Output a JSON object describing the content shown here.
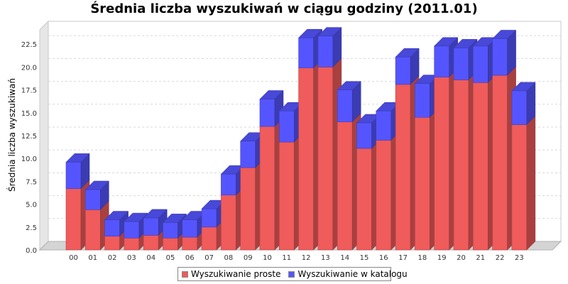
{
  "chart_data": {
    "type": "bar",
    "stacked": true,
    "three_d": true,
    "title": "Średnia liczba wyszukiwań w ciągu godziny (2011.01)",
    "ylabel": "Średnia liczba wyszukiwań",
    "xlabel": "",
    "ylim": [
      0,
      25
    ],
    "yticks": [
      "0.0",
      "2.5",
      "5.0",
      "7.5",
      "10.0",
      "12.5",
      "15.0",
      "17.5",
      "20.0",
      "22.5"
    ],
    "grid": true,
    "legend_position": "bottom",
    "categories": [
      "00",
      "01",
      "02",
      "03",
      "04",
      "05",
      "06",
      "07",
      "08",
      "09",
      "10",
      "11",
      "12",
      "13",
      "14",
      "15",
      "16",
      "17",
      "18",
      "19",
      "20",
      "21",
      "22",
      "23"
    ],
    "series": [
      {
        "name": "Wyszukiwanie proste",
        "color": "#f05b5b",
        "values": [
          6.7,
          4.4,
          1.5,
          1.3,
          1.6,
          1.3,
          1.4,
          2.5,
          6.0,
          9.0,
          13.5,
          11.8,
          19.9,
          20.0,
          14.0,
          11.1,
          12.0,
          18.1,
          14.5,
          18.9,
          18.6,
          18.3,
          19.1,
          13.7
        ]
      },
      {
        "name": "Wyszukiwanie w katalogu",
        "color": "#5555ff",
        "values": [
          2.9,
          2.2,
          1.8,
          1.8,
          1.9,
          1.7,
          1.9,
          2.0,
          2.3,
          2.9,
          3.0,
          3.4,
          3.3,
          3.4,
          3.5,
          2.8,
          3.2,
          3.0,
          3.7,
          3.4,
          3.5,
          4.0,
          4.0,
          3.7
        ]
      }
    ]
  }
}
